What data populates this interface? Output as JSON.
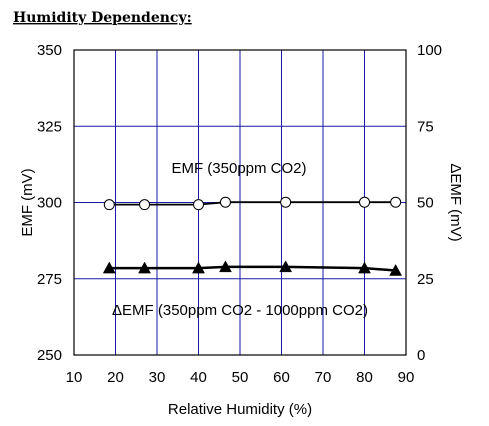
{
  "heading": "Humidity Dependency:",
  "chart_data": {
    "type": "line",
    "xlabel": "Relative Humidity (%)",
    "ylabel": "EMF (mV)",
    "y2label": "ΔEMF (mV)",
    "xlim": [
      10,
      90
    ],
    "ylim": [
      250,
      350
    ],
    "y2lim": [
      0,
      100
    ],
    "x_ticks": [
      "10",
      "20",
      "30",
      "40",
      "50",
      "60",
      "70",
      "80",
      "90"
    ],
    "y_ticks": [
      "250",
      "275",
      "300",
      "325",
      "350"
    ],
    "y2_ticks": [
      "0",
      "25",
      "50",
      "75",
      "100"
    ],
    "grid": true,
    "series": [
      {
        "name": "EMF (350ppm CO2)",
        "axis": "left",
        "marker": "open-circle",
        "x": [
          18.5,
          27,
          40,
          46.5,
          61,
          80,
          87.5
        ],
        "y": [
          299.3,
          299.3,
          299.3,
          300.1,
          300.1,
          300.1,
          300.1
        ]
      },
      {
        "name": "ΔEMF (350ppm CO2 - 1000ppm CO2)",
        "axis": "right",
        "marker": "filled-triangle",
        "x": [
          18.5,
          27,
          40,
          46.5,
          61,
          80,
          87.5
        ],
        "y": [
          28.5,
          28.5,
          28.5,
          28.9,
          28.9,
          28.5,
          27.7
        ]
      }
    ]
  }
}
